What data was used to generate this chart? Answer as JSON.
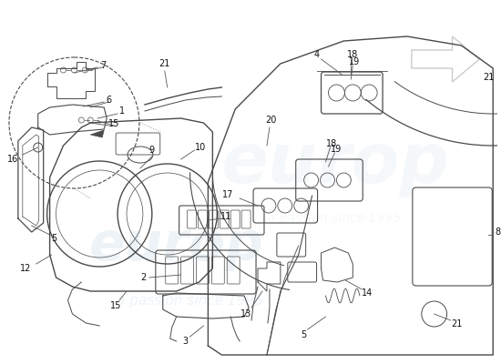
{
  "bg_color": "#ffffff",
  "lc": "#4a4a4a",
  "lw": 0.8,
  "fs": 7.0,
  "wm1": "europ",
  "wm2": "a passion since 1995",
  "wm_color": "#c8dce8",
  "wm_alpha": 0.32,
  "arrow_color": "#cccccc",
  "label_color": "#111111",
  "leader_color": "#555555"
}
